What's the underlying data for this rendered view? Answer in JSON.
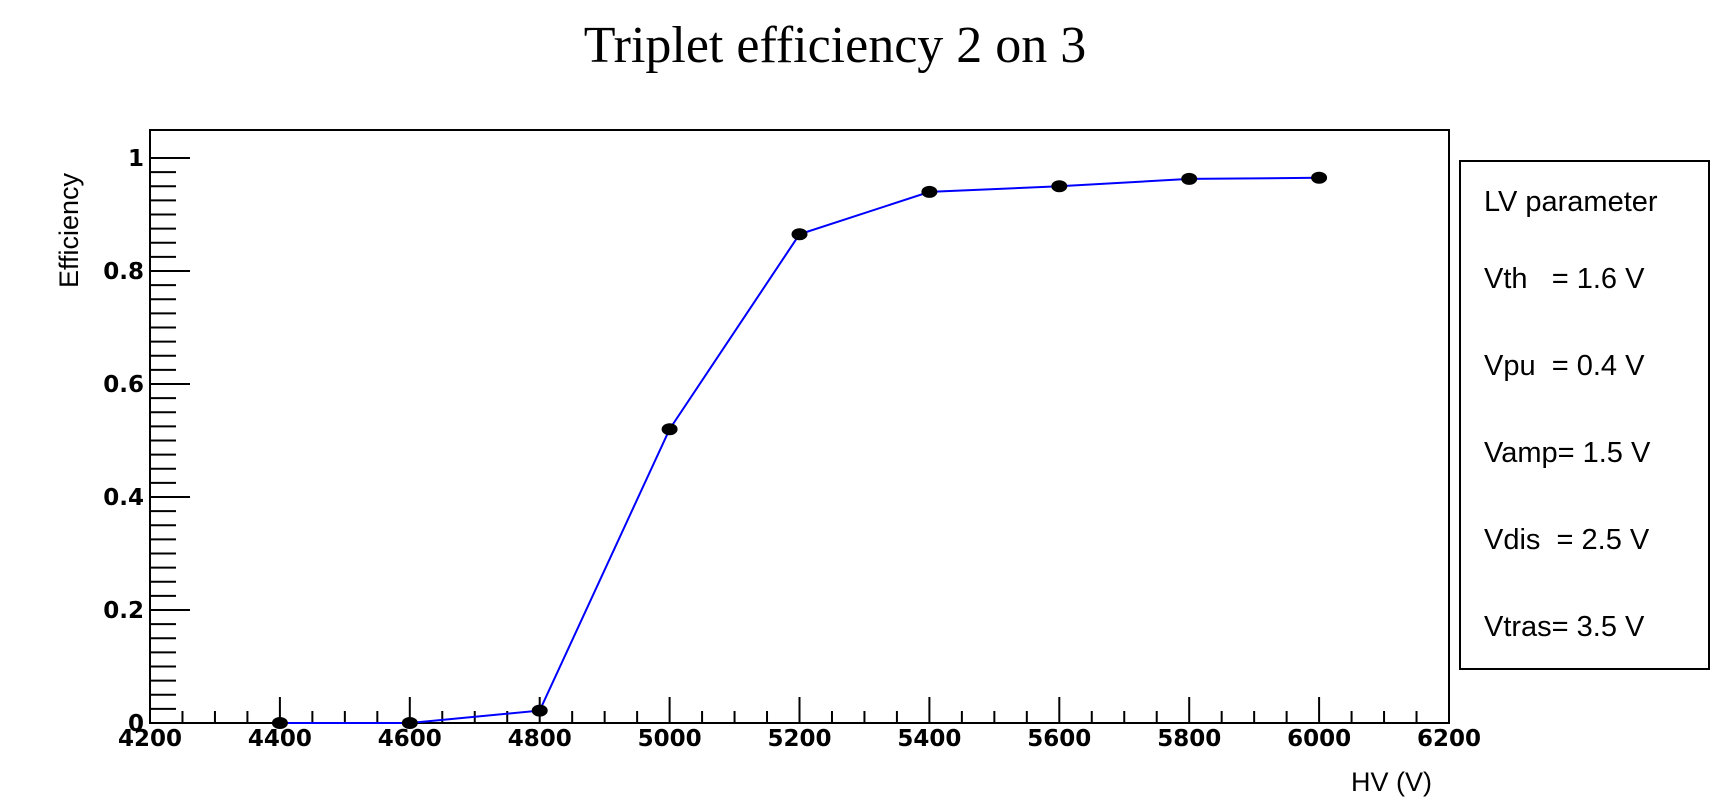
{
  "chart_data": {
    "type": "line",
    "title": "Triplet efficiency 2 on 3",
    "xlabel": "HV (V)",
    "ylabel": "Efficiency",
    "xlim": [
      4200,
      6200
    ],
    "ylim": [
      0,
      1.05
    ],
    "x_ticks": [
      4200,
      4400,
      4600,
      4800,
      5000,
      5200,
      5400,
      5600,
      5800,
      6000,
      6200
    ],
    "y_ticks": [
      0,
      0.2,
      0.4,
      0.6,
      0.8,
      1
    ],
    "y_tick_labels": [
      "0",
      "0.2",
      "0.4",
      "0.6",
      "0.8",
      "1"
    ],
    "series": [
      {
        "x": [
          4400,
          4600,
          4800,
          5000,
          5200,
          5400,
          5600,
          5800,
          6000
        ],
        "y": [
          0.0,
          0.0,
          0.022,
          0.52,
          0.865,
          0.94,
          0.95,
          0.963,
          0.965
        ],
        "line_color": "#0000ff",
        "marker_color": "#000000"
      }
    ],
    "grid": false
  },
  "legend": {
    "title": "LV parameter",
    "items": [
      "Vth   = 1.6 V",
      "Vpu  = 0.4 V",
      "Vamp= 1.5 V",
      "Vdis  = 2.5 V",
      "Vtras= 3.5 V"
    ]
  }
}
